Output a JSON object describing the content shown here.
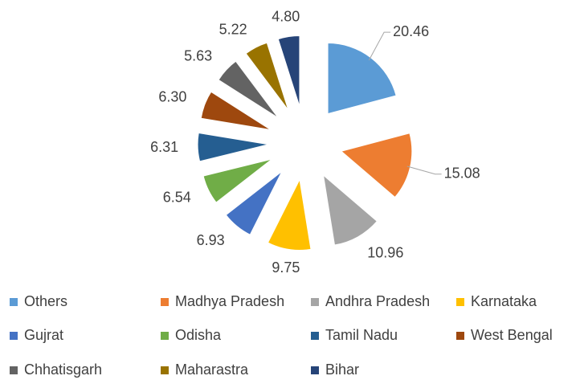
{
  "chart_data": {
    "type": "pie",
    "categories": [
      "Others",
      "Madhya Pradesh",
      "Andhra Pradesh",
      "Karnataka",
      "Gujrat",
      "Odisha",
      "Tamil Nadu",
      "West Bengal",
      "Chhatisgarh",
      "Maharastra",
      "Bihar"
    ],
    "values": [
      20.46,
      15.08,
      10.96,
      9.75,
      6.93,
      6.54,
      6.31,
      6.3,
      5.63,
      5.22,
      4.8
    ],
    "value_labels": [
      "20.46",
      "15.08",
      "10.96",
      "9.75",
      "6.93",
      "6.54",
      "6.31",
      "6.30",
      "5.63",
      "5.22",
      "4.80"
    ],
    "colors": [
      "#5b9bd5",
      "#ed7d31",
      "#a5a5a5",
      "#ffc000",
      "#4472c4",
      "#70ad47",
      "#255e91",
      "#9e480e",
      "#636363",
      "#997300",
      "#264478"
    ],
    "legend": "bottom"
  }
}
